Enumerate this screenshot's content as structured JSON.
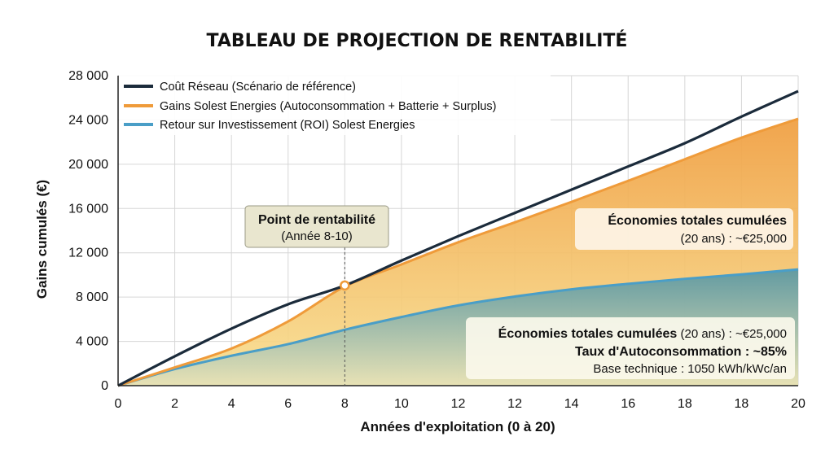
{
  "chart_data": {
    "type": "area",
    "title": "TABLEAU DE PROJECTION DE RENTABILITÉ",
    "xlabel": "Années d'exploitation (0 à 20)",
    "ylabel": "Gains cumulés (€)",
    "x_tick_labels": [
      "0",
      "2",
      "4",
      "6",
      "8",
      "10",
      "12",
      "12",
      "14",
      "16",
      "18",
      "18",
      "20"
    ],
    "y_ticks": [
      0,
      4000,
      8000,
      12000,
      16000,
      20000,
      24000,
      28000
    ],
    "y_tick_labels": [
      "0",
      "4 000",
      "8 000",
      "12 000",
      "16 000",
      "20 000",
      "24 000",
      "28 000"
    ],
    "ylim": [
      0,
      28000
    ],
    "grid": true,
    "legend_position": "top-left",
    "series": [
      {
        "name": "Coût Réseau (Scénario de référence)",
        "color": "#1b2b3b",
        "values": [
          0,
          2650,
          5150,
          7350,
          9050,
          11300,
          13500,
          15600,
          17700,
          19800,
          21900,
          24300,
          26600
        ]
      },
      {
        "name": "Gains Solest Energies (Autoconsommation + Batterie + Surplus)",
        "color": "#ef9b3a",
        "values": [
          0,
          1650,
          3350,
          5800,
          8950,
          10950,
          12950,
          14750,
          16600,
          18500,
          20450,
          22400,
          24100
        ]
      },
      {
        "name": "Retour sur Investissement (ROI) Solest Energies",
        "color": "#4a9ec7",
        "values": [
          0,
          1500,
          2700,
          3750,
          5050,
          6200,
          7250,
          8050,
          8700,
          9200,
          9650,
          10050,
          10500
        ]
      }
    ],
    "annotations": {
      "breakeven": {
        "title": "Point de rentabilité",
        "subtitle": "(Année 8-10)",
        "x_index": 4,
        "y": 9050
      },
      "box_top": {
        "line1": "Économies totales cumulées",
        "line2": "(20 ans) : ~€25,000"
      },
      "box_bottom": {
        "line1_bold": "Économies totales cumulées",
        "line1_rest": " (20 ans) : ~€25,000",
        "line2": "Taux d'Autoconsommation : ~85%",
        "line3": "Base technique : 1050 kWh/kWc/an"
      }
    }
  }
}
